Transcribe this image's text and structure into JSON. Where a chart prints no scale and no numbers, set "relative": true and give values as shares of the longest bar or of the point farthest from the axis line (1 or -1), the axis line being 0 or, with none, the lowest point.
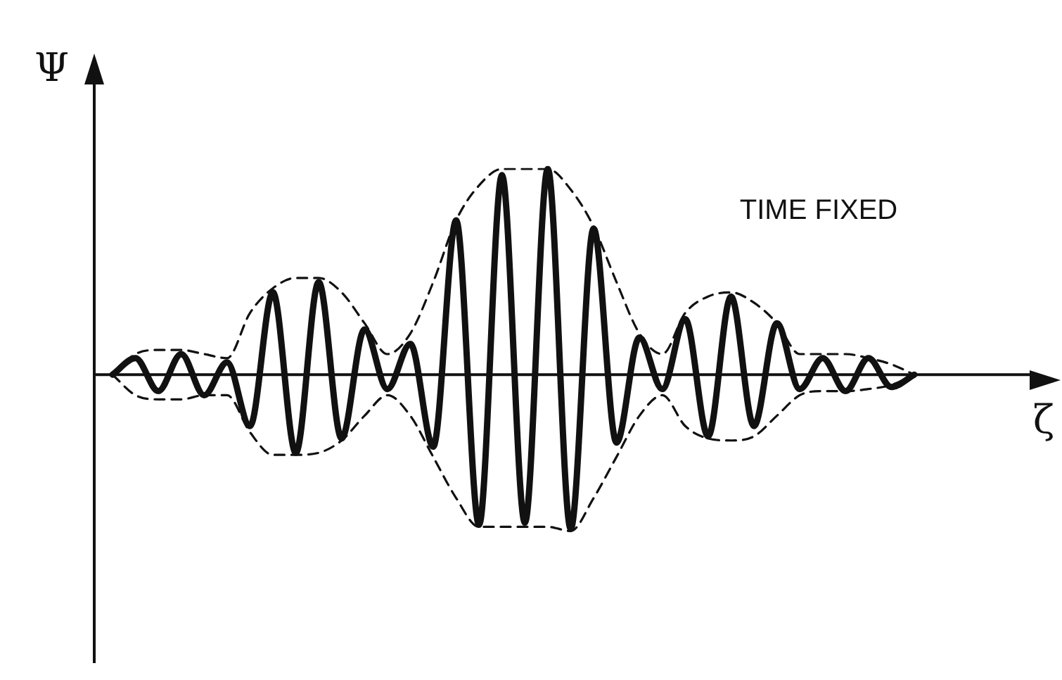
{
  "chart_data": {
    "type": "line",
    "relative": true,
    "xlabel": "ζ",
    "ylabel": "Ψ",
    "annotations": [
      "TIME FIXED"
    ],
    "grid": false,
    "legend": false,
    "marker": "none",
    "categories": [
      null,
      null,
      null,
      null,
      null,
      null,
      null,
      null,
      null,
      null,
      null,
      null,
      null,
      null,
      null,
      null,
      null,
      null,
      null,
      null,
      null,
      null,
      null,
      null,
      null,
      null,
      null,
      null,
      null,
      null,
      null,
      null,
      null,
      null,
      null,
      null
    ],
    "series": [
      {
        "color": "#111111",
        "line_style": "solid",
        "values": [
          0,
          0.08,
          -0.08,
          0.1,
          -0.1,
          0.06,
          -0.25,
          0.4,
          -0.38,
          0.45,
          -0.31,
          0.22,
          -0.07,
          0.15,
          -0.35,
          0.75,
          -0.73,
          0.97,
          -0.72,
          1.0,
          -0.75,
          0.71,
          -0.33,
          0.18,
          -0.07,
          0.27,
          -0.3,
          0.38,
          -0.25,
          0.25,
          -0.07,
          0.08,
          -0.08,
          0.08,
          -0.06,
          0
        ]
      },
      {
        "color": "#111111",
        "line_style": "dashed",
        "values": [
          0,
          0.1,
          0.12,
          0.12,
          0.1,
          0.08,
          0.3,
          0.42,
          0.47,
          0.47,
          0.4,
          0.25,
          0.1,
          0.2,
          0.45,
          0.75,
          0.92,
          1.0,
          1.0,
          1.0,
          0.9,
          0.72,
          0.45,
          0.2,
          0.1,
          0.3,
          0.38,
          0.4,
          0.35,
          0.25,
          0.1,
          0.1,
          0.1,
          0.08,
          0.05,
          0
        ]
      },
      {
        "color": "#111111",
        "line_style": "dashed",
        "values": [
          0,
          -0.1,
          -0.12,
          -0.12,
          -0.1,
          -0.1,
          -0.28,
          -0.39,
          -0.39,
          -0.38,
          -0.32,
          -0.2,
          -0.1,
          -0.2,
          -0.4,
          -0.6,
          -0.74,
          -0.74,
          -0.74,
          -0.74,
          -0.76,
          -0.6,
          -0.4,
          -0.2,
          -0.1,
          -0.25,
          -0.31,
          -0.32,
          -0.3,
          -0.2,
          -0.1,
          -0.08,
          -0.08,
          -0.07,
          -0.05,
          0
        ]
      }
    ]
  }
}
